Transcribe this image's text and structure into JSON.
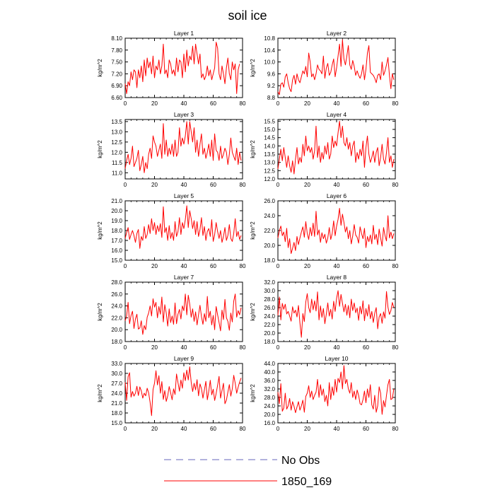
{
  "title": "soil ice",
  "colors": {
    "series": "#ff0000",
    "no_obs": "#6666bb",
    "axis": "#000000"
  },
  "legend": {
    "position": "bottom-center",
    "items": [
      {
        "label": "No Obs",
        "style": "dashed",
        "color": "#6666bb"
      },
      {
        "label": "1850_169",
        "style": "solid",
        "color": "#ff0000"
      }
    ]
  },
  "chart_data": [
    {
      "type": "line",
      "title": "Layer 1",
      "xlabel": "",
      "ylabel": "kg/m^2",
      "xlim": [
        0,
        80
      ],
      "ylim": [
        6.6,
        8.1
      ],
      "xticks": [
        0,
        20,
        40,
        60,
        80
      ],
      "yticks": [
        "6.60",
        "6.90",
        "7.20",
        "7.50",
        "7.80",
        "8.10"
      ],
      "series": [
        {
          "values": [
            6.95,
            6.7,
            7.0,
            6.9,
            7.25,
            7.05,
            7.3,
            7.25,
            6.85,
            7.3,
            7.1,
            7.4,
            7.0,
            7.55,
            7.15,
            7.6,
            7.35,
            7.5,
            7.2,
            7.65,
            7.1,
            7.4,
            7.3,
            7.55,
            7.2,
            7.4,
            7.95,
            7.2,
            7.3,
            7.1,
            7.55,
            7.45,
            7.2,
            7.3,
            7.15,
            7.6,
            7.25,
            7.55,
            7.5,
            7.1,
            7.7,
            7.25,
            7.8,
            7.4,
            7.65,
            7.55,
            7.9,
            7.45,
            7.95,
            7.7,
            7.45,
            7.7,
            7.1,
            7.2,
            7.05,
            7.15,
            7.4,
            7.15,
            7.3,
            7.05,
            7.2,
            7.35,
            8.0,
            7.85,
            7.2,
            7.05,
            7.4,
            7.2,
            6.95,
            7.35,
            7.6,
            7.2,
            7.05,
            7.5,
            7.3,
            7.45,
            6.7,
            7.3,
            7.45
          ]
        }
      ]
    },
    {
      "type": "line",
      "title": "Layer 2",
      "xlabel": "",
      "ylabel": "kg/m^2",
      "xlim": [
        0,
        80
      ],
      "ylim": [
        8.8,
        10.8
      ],
      "xticks": [
        0,
        20,
        40,
        60,
        80
      ],
      "yticks": [
        "8.8",
        "9.2",
        "9.6",
        "10.0",
        "10.4",
        "10.8"
      ],
      "series": [
        {
          "values": [
            9.0,
            8.9,
            9.25,
            9.3,
            9.15,
            9.5,
            9.6,
            9.3,
            9.1,
            9.0,
            9.4,
            9.55,
            9.25,
            9.6,
            9.4,
            9.3,
            9.5,
            9.7,
            9.6,
            9.85,
            9.5,
            10.3,
            10.0,
            9.5,
            9.6,
            9.4,
            9.6,
            9.9,
            9.75,
            9.7,
            9.6,
            10.2,
            9.45,
            9.8,
            9.95,
            9.55,
            9.65,
            9.9,
            10.1,
            9.5,
            9.8,
            10.2,
            10.6,
            9.85,
            10.75,
            10.1,
            9.9,
            10.2,
            10.55,
            9.9,
            9.75,
            10.05,
            9.85,
            9.55,
            9.7,
            9.55,
            9.45,
            9.6,
            9.9,
            9.4,
            9.75,
            10.3,
            10.55,
            9.65,
            9.6,
            9.55,
            9.45,
            9.3,
            9.55,
            9.6,
            9.4,
            10.0,
            9.55,
            9.7,
            9.9,
            10.15,
            9.55,
            9.1,
            9.6,
            9.4
          ]
        }
      ]
    },
    {
      "type": "line",
      "title": "Layer 3",
      "xlabel": "",
      "ylabel": "kg/m^2",
      "xlim": [
        0,
        80
      ],
      "ylim": [
        10.7,
        13.6
      ],
      "xticks": [
        0,
        20,
        40,
        60,
        80
      ],
      "yticks": [
        "11.0",
        "11.5",
        "12.0",
        "12.5",
        "13.0",
        "13.5"
      ],
      "series": [
        {
          "values": [
            11.2,
            11.6,
            11.9,
            11.4,
            11.7,
            12.3,
            11.3,
            11.5,
            11.7,
            12.1,
            11.1,
            11.4,
            11.8,
            11.0,
            11.5,
            11.2,
            11.9,
            12.2,
            11.7,
            12.8,
            12.5,
            12.3,
            11.8,
            12.1,
            12.4,
            11.7,
            13.4,
            11.9,
            12.6,
            11.8,
            12.2,
            11.9,
            12.4,
            11.8,
            12.6,
            11.8,
            12.0,
            13.2,
            12.3,
            12.7,
            12.4,
            12.8,
            13.5,
            12.4,
            13.5,
            13.0,
            12.5,
            13.2,
            12.0,
            12.6,
            11.8,
            12.4,
            12.9,
            11.9,
            12.2,
            11.7,
            12.0,
            12.4,
            11.8,
            12.6,
            11.6,
            12.9,
            12.1,
            12.0,
            11.6,
            12.3,
            11.7,
            11.9,
            12.2,
            12.0,
            11.4,
            11.9,
            12.7,
            12.0,
            11.8,
            11.6,
            12.2,
            11.4,
            12.0,
            11.6
          ]
        }
      ]
    },
    {
      "type": "line",
      "title": "Layer 4",
      "xlabel": "",
      "ylabel": "kg/m^2",
      "xlim": [
        0,
        80
      ],
      "ylim": [
        12.0,
        15.6
      ],
      "xticks": [
        0,
        20,
        40,
        60,
        80
      ],
      "yticks": [
        "12.0",
        "12.5",
        "13.0",
        "13.5",
        "14.0",
        "14.5",
        "15.0",
        "15.5"
      ],
      "series": [
        {
          "values": [
            12.6,
            13.2,
            13.8,
            13.1,
            13.9,
            13.3,
            12.7,
            13.4,
            12.8,
            12.4,
            13.1,
            12.3,
            13.2,
            13.9,
            12.9,
            13.3,
            13.0,
            14.1,
            13.4,
            14.6,
            13.7,
            14.0,
            13.6,
            13.9,
            13.2,
            13.7,
            15.2,
            13.3,
            14.0,
            13.0,
            13.6,
            13.2,
            14.0,
            13.5,
            14.2,
            13.2,
            13.5,
            14.6,
            13.9,
            14.3,
            14.0,
            14.8,
            15.5,
            14.5,
            15.2,
            14.2,
            14.0,
            14.5,
            13.8,
            14.2,
            13.4,
            14.0,
            14.3,
            13.0,
            13.6,
            13.2,
            13.8,
            13.4,
            14.3,
            12.7,
            13.9,
            14.6,
            13.5,
            13.0,
            13.3,
            13.7,
            13.0,
            13.6,
            13.9,
            12.8,
            13.3,
            14.1,
            13.2,
            12.9,
            13.6,
            14.5,
            13.0,
            13.4,
            12.7,
            13.2
          ]
        }
      ]
    },
    {
      "type": "line",
      "title": "Layer 5",
      "xlabel": "",
      "ylabel": "kg/m^2",
      "xlim": [
        0,
        80
      ],
      "ylim": [
        15.0,
        21.0
      ],
      "xticks": [
        0,
        20,
        40,
        60,
        80
      ],
      "yticks": [
        "15.0",
        "16.0",
        "17.0",
        "18.0",
        "19.0",
        "20.0",
        "21.0"
      ],
      "series": [
        {
          "values": [
            17.2,
            17.8,
            18.3,
            17.1,
            17.6,
            18.0,
            17.5,
            16.8,
            17.7,
            18.1,
            16.2,
            17.4,
            17.0,
            18.4,
            17.2,
            17.6,
            18.6,
            17.7,
            19.2,
            18.0,
            18.8,
            17.6,
            18.5,
            17.9,
            18.7,
            17.3,
            20.4,
            17.8,
            18.3,
            17.0,
            18.5,
            17.2,
            17.8,
            17.0,
            18.9,
            17.4,
            17.9,
            19.3,
            17.6,
            18.8,
            18.2,
            19.1,
            20.5,
            18.3,
            20.0,
            19.2,
            18.2,
            19.0,
            17.6,
            18.9,
            17.4,
            18.1,
            19.3,
            17.5,
            18.4,
            17.0,
            17.9,
            18.2,
            17.4,
            19.1,
            16.9,
            17.6,
            18.8,
            17.9,
            17.2,
            18.0,
            16.8,
            17.4,
            18.3,
            17.0,
            17.5,
            18.6,
            17.2,
            16.9,
            17.7,
            19.2,
            17.4,
            17.9,
            17.1,
            17.5
          ]
        }
      ]
    },
    {
      "type": "line",
      "title": "Layer 6",
      "xlabel": "",
      "ylabel": "kg/m^2",
      "xlim": [
        0,
        80
      ],
      "ylim": [
        18.0,
        26.0
      ],
      "xticks": [
        0,
        20,
        40,
        60,
        80
      ],
      "yticks": [
        "18.0",
        "20.0",
        "22.0",
        "24.0",
        "26.0"
      ],
      "series": [
        {
          "values": [
            21.0,
            22.0,
            22.6,
            21.3,
            21.8,
            20.5,
            22.3,
            19.7,
            20.9,
            18.9,
            19.6,
            20.4,
            19.3,
            21.2,
            20.1,
            21.0,
            21.8,
            22.5,
            21.1,
            23.2,
            21.6,
            20.8,
            22.4,
            21.3,
            23.0,
            21.2,
            24.6,
            21.4,
            22.1,
            20.4,
            21.7,
            20.9,
            21.5,
            20.3,
            21.0,
            22.4,
            20.8,
            21.6,
            23.3,
            21.3,
            22.6,
            23.5,
            25.0,
            22.7,
            24.2,
            23.1,
            21.8,
            22.5,
            20.9,
            22.0,
            20.2,
            21.3,
            22.8,
            21.4,
            21.1,
            20.3,
            22.5,
            21.6,
            20.9,
            22.3,
            19.7,
            21.2,
            20.5,
            21.4,
            20.2,
            22.7,
            20.8,
            21.5,
            20.1,
            22.2,
            21.0,
            19.9,
            22.4,
            21.3,
            20.6,
            24.0,
            21.0,
            21.8,
            20.9,
            21.6
          ]
        }
      ]
    },
    {
      "type": "line",
      "title": "Layer 7",
      "xlabel": "",
      "ylabel": "kg/m^2",
      "xlim": [
        0,
        80
      ],
      "ylim": [
        18.0,
        28.0
      ],
      "xticks": [
        0,
        20,
        40,
        60,
        80
      ],
      "yticks": [
        "18.0",
        "20.0",
        "22.0",
        "24.0",
        "26.0",
        "28.0"
      ],
      "series": [
        {
          "values": [
            21.5,
            22.3,
            24.6,
            21.0,
            22.4,
            23.1,
            20.2,
            21.8,
            22.6,
            20.1,
            20.3,
            21.5,
            19.2,
            20.7,
            20.0,
            22.1,
            22.8,
            24.0,
            22.3,
            25.2,
            23.8,
            24.6,
            22.0,
            23.9,
            22.6,
            25.5,
            21.3,
            24.2,
            22.8,
            20.6,
            23.5,
            21.2,
            22.3,
            20.9,
            24.5,
            21.0,
            22.6,
            23.4,
            21.8,
            24.0,
            23.2,
            26.0,
            22.5,
            25.8,
            24.3,
            22.1,
            23.5,
            21.4,
            23.0,
            20.8,
            22.5,
            24.1,
            22.2,
            20.9,
            22.7,
            21.4,
            25.6,
            22.0,
            23.1,
            20.8,
            22.4,
            20.0,
            23.9,
            22.5,
            21.2,
            19.8,
            23.3,
            21.7,
            25.1,
            22.0,
            21.4,
            19.9,
            22.8,
            21.3,
            24.8,
            26.0,
            22.1,
            23.2,
            22.5,
            23.7
          ]
        }
      ]
    },
    {
      "type": "line",
      "title": "Layer 8",
      "xlabel": "",
      "ylabel": "kg/m^2",
      "xlim": [
        0,
        80
      ],
      "ylim": [
        18.0,
        32.0
      ],
      "xticks": [
        0,
        20,
        40,
        60,
        80
      ],
      "yticks": [
        "18.0",
        "20.0",
        "22.0",
        "24.0",
        "26.0",
        "28.0",
        "30.0",
        "32.0"
      ],
      "series": [
        {
          "values": [
            24.2,
            28.5,
            23.1,
            27.0,
            25.6,
            26.8,
            24.5,
            25.1,
            24.0,
            22.8,
            26.2,
            24.7,
            25.4,
            23.8,
            26.5,
            22.4,
            19.0,
            24.6,
            22.7,
            27.3,
            29.3,
            26.0,
            24.8,
            28.0,
            25.5,
            27.6,
            25.2,
            29.7,
            23.1,
            26.4,
            23.7,
            25.8,
            22.2,
            24.5,
            27.1,
            24.0,
            25.6,
            23.3,
            27.5,
            25.1,
            28.2,
            30.0,
            26.3,
            29.1,
            27.0,
            25.0,
            26.8,
            24.2,
            26.5,
            23.6,
            28.0,
            25.3,
            27.1,
            24.8,
            25.9,
            23.0,
            26.3,
            24.5,
            27.6,
            22.9,
            25.8,
            24.0,
            26.7,
            23.4,
            25.1,
            22.5,
            24.7,
            26.0,
            21.0,
            23.8,
            24.6,
            22.3,
            25.0,
            23.5,
            29.8,
            26.1,
            24.4,
            25.3,
            27.2,
            26.0
          ]
        }
      ]
    },
    {
      "type": "line",
      "title": "Layer 9",
      "xlabel": "",
      "ylabel": "kg/m^2",
      "xlim": [
        0,
        80
      ],
      "ylim": [
        15.0,
        33.0
      ],
      "xticks": [
        0,
        20,
        40,
        60,
        80
      ],
      "yticks": [
        "15.0",
        "18.0",
        "21.0",
        "24.0",
        "27.0",
        "30.0",
        "33.0"
      ],
      "series": [
        {
          "values": [
            27.3,
            21.8,
            29.0,
            30.2,
            22.8,
            24.5,
            23.1,
            24.0,
            26.1,
            23.3,
            25.9,
            24.7,
            22.5,
            24.0,
            23.2,
            25.5,
            24.1,
            21.2,
            17.2,
            25.1,
            27.0,
            30.8,
            26.5,
            29.3,
            24.0,
            27.5,
            22.1,
            24.8,
            21.5,
            23.2,
            26.0,
            24.1,
            22.0,
            25.3,
            23.6,
            29.8,
            27.2,
            24.6,
            28.0,
            25.5,
            30.2,
            27.8,
            31.0,
            28.0,
            32.0,
            27.3,
            24.5,
            27.0,
            25.0,
            28.1,
            23.2,
            26.8,
            25.4,
            22.5,
            25.0,
            27.6,
            22.0,
            24.6,
            27.9,
            23.5,
            25.2,
            21.8,
            23.9,
            26.4,
            29.1,
            22.5,
            24.8,
            27.0,
            20.8,
            21.9,
            24.3,
            26.6,
            23.1,
            25.3,
            29.4,
            27.0,
            24.0,
            25.8,
            27.4,
            28.6
          ]
        }
      ]
    },
    {
      "type": "line",
      "title": "Layer 10",
      "xlabel": "",
      "ylabel": "kg/m^2",
      "xlim": [
        0,
        80
      ],
      "ylim": [
        16.0,
        44.0
      ],
      "xticks": [
        0,
        20,
        40,
        60,
        80
      ],
      "yticks": [
        "16.0",
        "20.0",
        "24.0",
        "28.0",
        "32.0",
        "36.0",
        "40.0",
        "44.0"
      ],
      "series": [
        {
          "values": [
            30.5,
            25.0,
            34.5,
            21.5,
            23.0,
            30.0,
            22.5,
            24.0,
            27.5,
            22.0,
            26.0,
            23.8,
            20.8,
            23.5,
            26.0,
            22.0,
            24.0,
            26.7,
            21.0,
            28.5,
            30.0,
            33.5,
            28.0,
            31.0,
            27.0,
            29.0,
            30.5,
            36.5,
            28.0,
            34.0,
            29.0,
            32.0,
            26.0,
            29.0,
            24.0,
            35.0,
            27.0,
            33.0,
            29.0,
            36.5,
            30.5,
            37.0,
            35.0,
            40.0,
            32.0,
            43.0,
            34.5,
            36.5,
            32.0,
            30.0,
            35.0,
            28.0,
            31.0,
            27.0,
            31.5,
            29.0,
            25.0,
            24.5,
            27.0,
            31.0,
            25.5,
            32.0,
            28.0,
            34.0,
            24.5,
            22.5,
            29.0,
            21.0,
            24.0,
            33.0,
            30.0,
            20.0,
            26.5,
            23.5,
            29.0,
            34.0,
            36.5,
            27.0,
            27.5,
            32.0
          ]
        }
      ]
    }
  ]
}
